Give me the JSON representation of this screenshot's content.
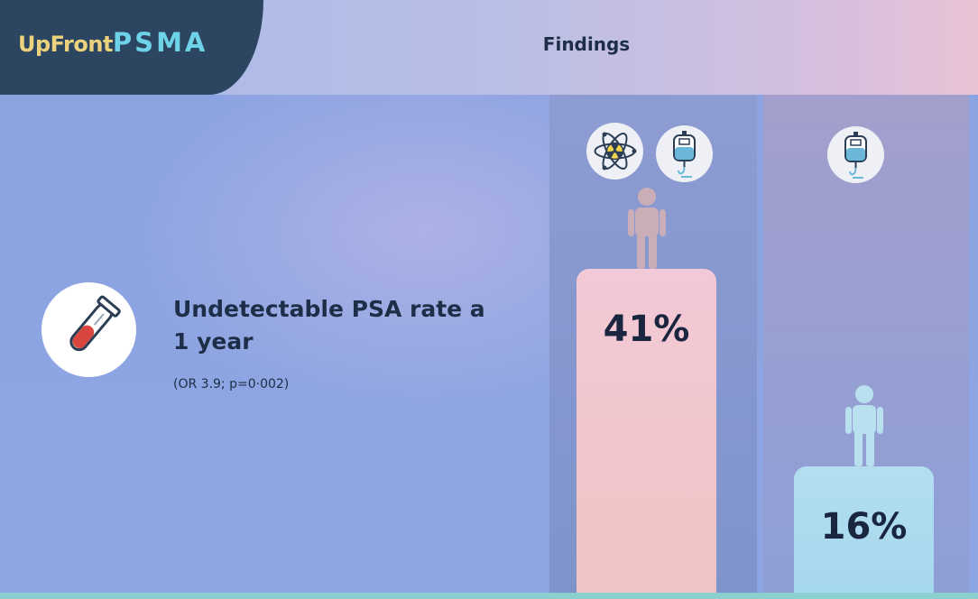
{
  "header": {
    "logo_prefix": "UpFront",
    "logo_suffix": "PSMA",
    "title": "Findings"
  },
  "metric": {
    "title": "Undetectable PSA rate a 1 year",
    "subtitle": "(OR 3.9; p=0·002)"
  },
  "chart_data": {
    "type": "bar",
    "categories": [
      "Radioligand + chemotherapy",
      "Chemotherapy"
    ],
    "values": [
      41,
      16
    ],
    "labels": [
      "41%",
      "16%"
    ],
    "ylim": [
      0,
      100
    ],
    "colors": [
      "#f1c5cf",
      "#b6e1f0"
    ]
  },
  "icons": {
    "metric": "test-tube-icon",
    "arm_a": [
      "atom-radiation-icon",
      "iv-bag-icon"
    ],
    "arm_b": [
      "iv-bag-icon"
    ],
    "person": "person-icon"
  },
  "colors": {
    "logo_bg": "#2c4560",
    "logo_up": "#ecd27c",
    "logo_psma": "#6ed3e8",
    "text_dark": "#1e2e48"
  }
}
